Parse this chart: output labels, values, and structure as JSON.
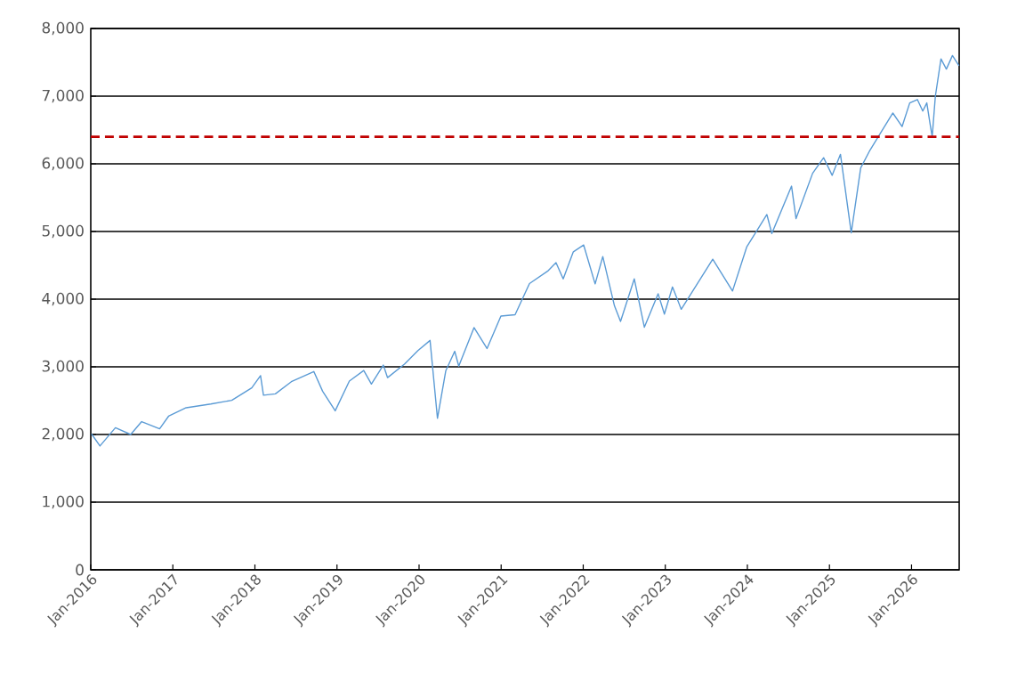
{
  "chart_data": {
    "type": "line",
    "x": [
      "2016-01-04",
      "2016-02-11",
      "2016-04-20",
      "2016-06-27",
      "2016-08-15",
      "2016-11-03",
      "2016-12-13",
      "2017-03-01",
      "2017-06-19",
      "2017-09-20",
      "2017-12-18",
      "2018-01-26",
      "2018-02-08",
      "2018-04-02",
      "2018-06-12",
      "2018-09-20",
      "2018-10-29",
      "2018-12-24",
      "2019-02-25",
      "2019-04-30",
      "2019-06-03",
      "2019-07-26",
      "2019-08-14",
      "2019-10-28",
      "2019-12-27",
      "2020-02-19",
      "2020-03-23",
      "2020-04-29",
      "2020-06-08",
      "2020-06-26",
      "2020-09-02",
      "2020-10-30",
      "2020-12-31",
      "2021-03-04",
      "2021-05-07",
      "2021-07-29",
      "2021-09-02",
      "2021-10-04",
      "2021-11-18",
      "2022-01-03",
      "2022-02-23",
      "2022-03-29",
      "2022-05-20",
      "2022-06-16",
      "2022-08-16",
      "2022-09-30",
      "2022-11-30",
      "2022-12-28",
      "2023-02-02",
      "2023-03-13",
      "2023-07-31",
      "2023-10-27",
      "2023-12-29",
      "2024-03-28",
      "2024-04-19",
      "2024-07-16",
      "2024-08-05",
      "2024-10-18",
      "2024-12-06",
      "2025-01-13",
      "2025-02-19",
      "2025-04-08",
      "2025-05-20",
      "2025-06-30",
      "2025-08-15",
      "2025-10-10",
      "2025-11-20",
      "2025-12-24",
      "2026-01-27",
      "2026-02-20",
      "2026-03-10",
      "2026-03-24",
      "2026-04-03",
      "2026-04-17",
      "2026-05-12",
      "2026-06-05",
      "2026-07-02",
      "2026-07-31"
    ],
    "series": [
      {
        "color": "#5b9bd5",
        "values": [
          2010,
          1830,
          2100,
          2000,
          2190,
          2085,
          2270,
          2395,
          2450,
          2505,
          2690,
          2870,
          2580,
          2600,
          2780,
          2930,
          2640,
          2350,
          2790,
          2945,
          2745,
          3025,
          2840,
          3040,
          3240,
          3390,
          2240,
          2940,
          3230,
          3010,
          3580,
          3270,
          3750,
          3770,
          4230,
          4420,
          4540,
          4300,
          4700,
          4800,
          4225,
          4630,
          3900,
          3670,
          4300,
          3585,
          4080,
          3780,
          4180,
          3850,
          4590,
          4120,
          4770,
          5250,
          4970,
          5670,
          5190,
          5860,
          6090,
          5830,
          6140,
          4980,
          5940,
          6200,
          6450,
          6750,
          6550,
          6900,
          6950,
          6780,
          6900,
          6600,
          6400,
          7000,
          7550,
          7400,
          7600,
          7450
        ]
      }
    ],
    "xlim": [
      "2016-01-01",
      "2026-08-01"
    ],
    "xticks": [
      {
        "value": "2016-01-01",
        "label": "Jan-2016"
      },
      {
        "value": "2017-01-01",
        "label": "Jan-2017"
      },
      {
        "value": "2018-01-01",
        "label": "Jan-2018"
      },
      {
        "value": "2019-01-01",
        "label": "Jan-2019"
      },
      {
        "value": "2020-01-01",
        "label": "Jan-2020"
      },
      {
        "value": "2021-01-01",
        "label": "Jan-2021"
      },
      {
        "value": "2022-01-01",
        "label": "Jan-2022"
      },
      {
        "value": "2023-01-01",
        "label": "Jan-2023"
      },
      {
        "value": "2024-01-01",
        "label": "Jan-2024"
      },
      {
        "value": "2025-01-01",
        "label": "Jan-2025"
      },
      {
        "value": "2026-01-01",
        "label": "Jan-2026"
      }
    ],
    "ylim": [
      0,
      8000
    ],
    "yticks": [
      {
        "value": 0,
        "label": "0"
      },
      {
        "value": 1000,
        "label": "1,000"
      },
      {
        "value": 2000,
        "label": "2,000"
      },
      {
        "value": 3000,
        "label": "3,000"
      },
      {
        "value": 4000,
        "label": "4,000"
      },
      {
        "value": 5000,
        "label": "5,000"
      },
      {
        "value": 6000,
        "label": "6,000"
      },
      {
        "value": 7000,
        "label": "7,000"
      },
      {
        "value": 8000,
        "label": "8,000"
      }
    ],
    "grid": "y",
    "ref_lines": [
      {
        "axis": "y",
        "value": 6400,
        "color": "#c00000",
        "line_style": "dashed"
      }
    ]
  }
}
